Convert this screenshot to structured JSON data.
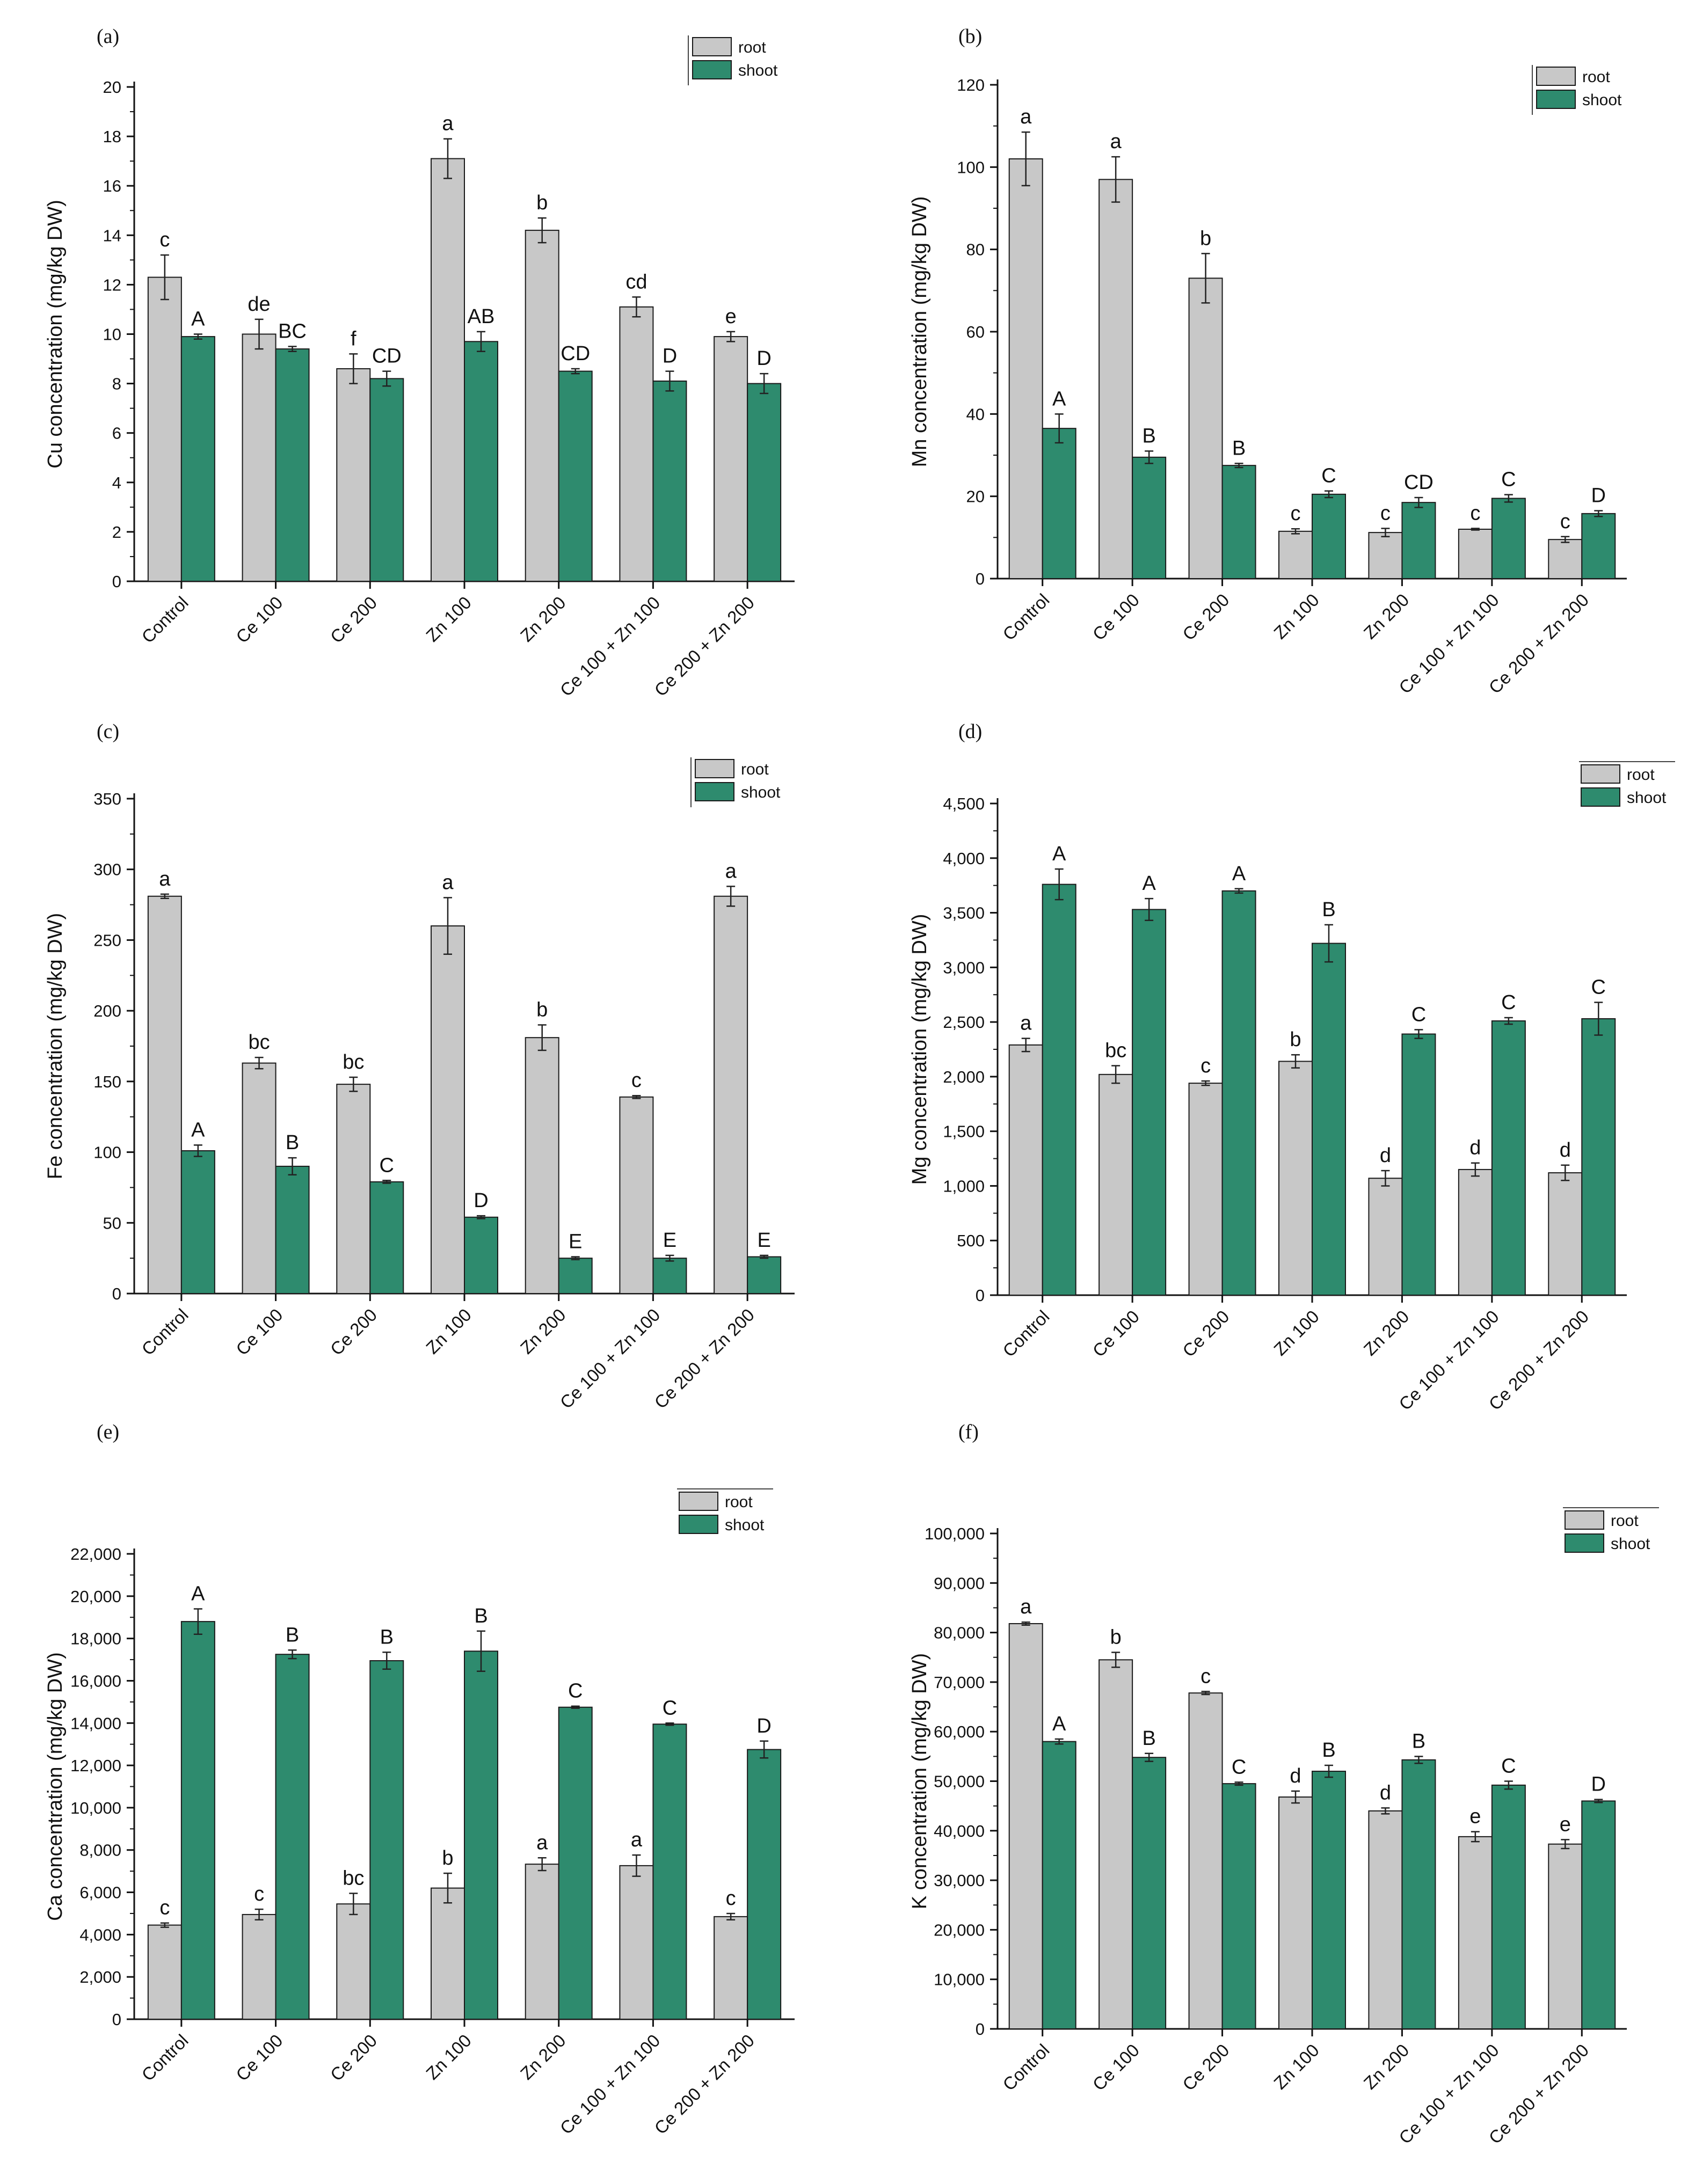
{
  "colors": {
    "root": "#c8c8c8",
    "shoot": "#2e8b6e",
    "axis": "#111111",
    "error": "#222222"
  },
  "categories": [
    "Control",
    "Ce 100",
    "Ce 200",
    "Zn 100",
    "Zn 200",
    "Ce 100 + Zn 100",
    "Ce  200 + Zn 200"
  ],
  "chart_data": [
    {
      "type": "bar",
      "panel": "(a)",
      "ylabel": "Cu concentration (mg/kg DW)",
      "ylim": [
        0,
        20
      ],
      "ticks": [
        0,
        2,
        4,
        6,
        8,
        10,
        12,
        14,
        16,
        18,
        20
      ],
      "tick_labels": [
        "0",
        "2",
        "4",
        "6",
        "8",
        "10",
        "12",
        "14",
        "16",
        "18",
        "20"
      ],
      "legend": [
        "root",
        "shoot"
      ],
      "series": [
        {
          "name": "root",
          "values": [
            12.3,
            10.0,
            8.6,
            17.1,
            14.2,
            11.1,
            9.9
          ],
          "errors": [
            0.9,
            0.6,
            0.6,
            0.8,
            0.5,
            0.4,
            0.2
          ],
          "letters": [
            "c",
            "de",
            "f",
            "a",
            "b",
            "cd",
            "e"
          ]
        },
        {
          "name": "shoot",
          "values": [
            9.9,
            9.4,
            8.2,
            9.7,
            8.5,
            8.1,
            8.0
          ],
          "errors": [
            0.1,
            0.1,
            0.3,
            0.4,
            0.1,
            0.4,
            0.4
          ],
          "letters": [
            "A",
            "BC",
            "CD",
            "AB",
            "CD",
            "D",
            "D"
          ]
        }
      ]
    },
    {
      "type": "bar",
      "panel": "(b)",
      "ylabel": "Mn concentration (mg/kg DW)",
      "ylim": [
        0,
        120
      ],
      "ticks": [
        0,
        20,
        40,
        60,
        80,
        100,
        120
      ],
      "tick_labels": [
        "0",
        "20",
        "40",
        "60",
        "80",
        "100",
        "120"
      ],
      "legend": [
        "root",
        "shoot"
      ],
      "series": [
        {
          "name": "root",
          "values": [
            102,
            97,
            73,
            11.5,
            11.2,
            12,
            9.5
          ],
          "errors": [
            6.5,
            5.5,
            6,
            0.6,
            1,
            0.2,
            0.7
          ],
          "letters": [
            "a",
            "a",
            "b",
            "c",
            "c",
            "c",
            "c"
          ]
        },
        {
          "name": "shoot",
          "values": [
            36.5,
            29.5,
            27.5,
            20.5,
            18.5,
            19.5,
            15.8
          ],
          "errors": [
            3.5,
            1.5,
            0.5,
            0.8,
            1.2,
            0.9,
            0.7
          ],
          "letters": [
            "A",
            "B",
            "B",
            "C",
            "CD",
            "C",
            "D"
          ]
        }
      ]
    },
    {
      "type": "bar",
      "panel": "(c)",
      "ylabel": "Fe concentration (mg/kg DW)",
      "ylim": [
        0,
        350
      ],
      "ticks": [
        0,
        50,
        100,
        150,
        200,
        250,
        300,
        350
      ],
      "tick_labels": [
        "0",
        "50",
        "100",
        "150",
        "200",
        "250",
        "300",
        "350"
      ],
      "legend": [
        "root",
        "shoot"
      ],
      "series": [
        {
          "name": "root",
          "values": [
            281,
            163,
            148,
            260,
            181,
            139,
            281
          ],
          "errors": [
            1.5,
            4,
            5,
            20,
            9,
            1,
            7
          ],
          "letters": [
            "a",
            "bc",
            "bc",
            "a",
            "b",
            "c",
            "a"
          ]
        },
        {
          "name": "shoot",
          "values": [
            101,
            90,
            79,
            54,
            25,
            25,
            26
          ],
          "errors": [
            4,
            6,
            1,
            1,
            1,
            2,
            1
          ],
          "letters": [
            "A",
            "B",
            "C",
            "D",
            "E",
            "E",
            "E"
          ]
        }
      ]
    },
    {
      "type": "bar",
      "panel": "(d)",
      "ylabel": "Mg concentration (mg/kg DW)",
      "ylim": [
        0,
        4500
      ],
      "ticks": [
        0,
        500,
        1000,
        1500,
        2000,
        2500,
        3000,
        3500,
        4000,
        4500
      ],
      "tick_labels": [
        "0",
        "500",
        "1,000",
        "1,500",
        "2,000",
        "2,500",
        "3,000",
        "3,500",
        "4,000",
        "4,500"
      ],
      "legend": [
        "root",
        "shoot"
      ],
      "series": [
        {
          "name": "root",
          "values": [
            2290,
            2020,
            1940,
            2140,
            1070,
            1150,
            1120
          ],
          "errors": [
            60,
            80,
            20,
            60,
            70,
            60,
            70
          ],
          "letters": [
            "a",
            "bc",
            "c",
            "b",
            "d",
            "d",
            "d"
          ]
        },
        {
          "name": "shoot",
          "values": [
            3760,
            3530,
            3700,
            3220,
            2390,
            2510,
            2530
          ],
          "errors": [
            140,
            100,
            20,
            170,
            40,
            30,
            150
          ],
          "letters": [
            "A",
            "A",
            "A",
            "B",
            "C",
            "C",
            "C"
          ]
        }
      ]
    },
    {
      "type": "bar",
      "panel": "(e)",
      "ylabel": "Ca concentration (mg/kg DW)",
      "ylim": [
        0,
        22000
      ],
      "ticks": [
        0,
        2000,
        4000,
        6000,
        8000,
        10000,
        12000,
        14000,
        16000,
        18000,
        20000,
        22000
      ],
      "tick_labels": [
        "0",
        "2,000",
        "4,000",
        "6,000",
        "8,000",
        "10,000",
        "12,000",
        "14,000",
        "16,000",
        "18,000",
        "20,000",
        "22,000"
      ],
      "legend": [
        "root",
        "shoot"
      ],
      "series": [
        {
          "name": "root",
          "values": [
            4450,
            4950,
            5450,
            6200,
            7330,
            7260,
            4850
          ],
          "errors": [
            100,
            250,
            500,
            700,
            300,
            500,
            150
          ],
          "letters": [
            "c",
            "c",
            "bc",
            "b",
            "a",
            "a",
            "c"
          ]
        },
        {
          "name": "shoot",
          "values": [
            18800,
            17250,
            16950,
            17400,
            14750,
            13950,
            12750
          ],
          "errors": [
            600,
            200,
            400,
            950,
            50,
            50,
            400
          ],
          "letters": [
            "A",
            "B",
            "B",
            "B",
            "C",
            "C",
            "D"
          ]
        }
      ]
    },
    {
      "type": "bar",
      "panel": "(f)",
      "ylabel": "K concentration (mg/kg DW)",
      "ylim": [
        0,
        100000
      ],
      "ticks": [
        0,
        10000,
        20000,
        30000,
        40000,
        50000,
        60000,
        70000,
        80000,
        90000,
        100000
      ],
      "tick_labels": [
        "0",
        "10,000",
        "20,000",
        "30,000",
        "40,000",
        "50,000",
        "60,000",
        "70,000",
        "80,000",
        "90,000",
        "100,000"
      ],
      "legend": [
        "root",
        "shoot"
      ],
      "series": [
        {
          "name": "root",
          "values": [
            81800,
            74500,
            67800,
            46800,
            44000,
            38800,
            37300
          ],
          "errors": [
            300,
            1500,
            300,
            1200,
            600,
            1000,
            900
          ],
          "letters": [
            "a",
            "b",
            "c",
            "d",
            "d",
            "e",
            "e"
          ]
        },
        {
          "name": "shoot",
          "values": [
            58000,
            54800,
            49500,
            52000,
            54300,
            49200,
            46000
          ],
          "errors": [
            500,
            800,
            300,
            1200,
            700,
            800,
            300
          ],
          "letters": [
            "A",
            "B",
            "C",
            "B",
            "B",
            "C",
            "D"
          ]
        }
      ]
    }
  ]
}
